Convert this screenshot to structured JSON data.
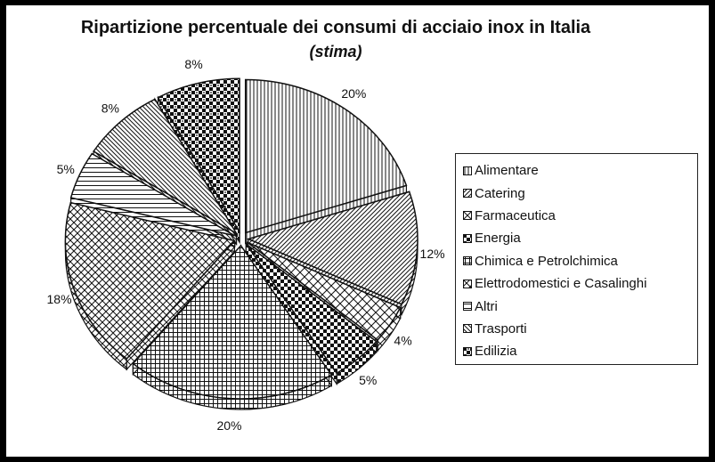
{
  "chart_data": {
    "type": "pie",
    "title": "Ripartizione percentuale dei consumi di acciaio inox in Italia",
    "subtitle": "(stima)",
    "legend_position": "right",
    "exploded": true,
    "three_d": true,
    "slices": [
      {
        "name": "Alimentare",
        "value": 20,
        "label": "20%",
        "pattern": "vertical"
      },
      {
        "name": "Catering",
        "value": 12,
        "label": "12%",
        "pattern": "diagonal-up"
      },
      {
        "name": "Farmaceutica",
        "value": 4,
        "label": "4%",
        "pattern": "diagonal-cross-wide"
      },
      {
        "name": "Energia",
        "value": 5,
        "label": "5%",
        "pattern": "checker"
      },
      {
        "name": "Chimica e Petrolchimica",
        "value": 20,
        "label": "20%",
        "pattern": "grid"
      },
      {
        "name": "Elettrodomestici e Casalinghi",
        "value": 18,
        "label": "18%",
        "pattern": "diagonal-cross"
      },
      {
        "name": "Altri",
        "value": 5,
        "label": "5%",
        "pattern": "horizontal"
      },
      {
        "name": "Trasporti",
        "value": 8,
        "label": "8%",
        "pattern": "diagonal-down"
      },
      {
        "name": "Edilizia",
        "value": 8,
        "label": "8%",
        "pattern": "checker-dots"
      }
    ]
  }
}
